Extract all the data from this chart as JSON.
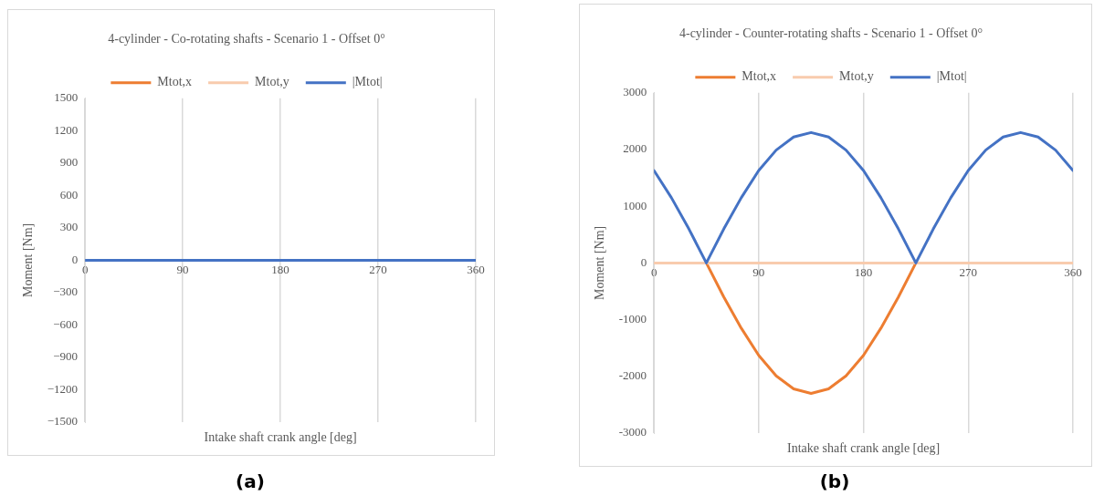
{
  "chart_data": [
    {
      "type": "line",
      "title": "4-cylinder - Co-rotating shafts - Scenario 1 - Offset 0°",
      "xlabel": "Intake shaft crank angle [deg]",
      "ylabel": "Moment [Nm]",
      "annotations": [
        "(a)"
      ],
      "x": [
        0,
        15,
        30,
        45,
        60,
        75,
        90,
        105,
        120,
        135,
        150,
        165,
        180,
        195,
        210,
        225,
        240,
        255,
        270,
        285,
        300,
        315,
        330,
        345,
        360
      ],
      "series": [
        {
          "name": "Mtot,x",
          "color": "#ed7d31",
          "values": [
            null,
            null,
            null,
            null,
            null,
            null,
            null,
            null,
            null,
            null,
            null,
            null,
            null,
            null,
            null,
            null,
            null,
            null,
            null,
            null,
            null,
            null,
            null,
            null,
            null
          ]
        },
        {
          "name": "Mtot,y",
          "color": "#f8cbad",
          "values": [
            null,
            null,
            null,
            null,
            null,
            null,
            null,
            null,
            null,
            null,
            null,
            null,
            null,
            null,
            null,
            null,
            null,
            null,
            null,
            null,
            null,
            null,
            null,
            null,
            null
          ]
        },
        {
          "name": "|Mtot|",
          "color": "#4472c4",
          "values": [
            0,
            0,
            0,
            0,
            0,
            0,
            0,
            0,
            0,
            0,
            0,
            0,
            0,
            0,
            0,
            0,
            0,
            0,
            0,
            0,
            0,
            0,
            0,
            0,
            0
          ]
        }
      ],
      "xlim": [
        0,
        360
      ],
      "xticks": [
        0,
        90,
        180,
        270,
        360
      ],
      "ylim": [
        -1500,
        1500
      ],
      "yticks": [
        {
          "value": -1500,
          "label": "−1500"
        },
        {
          "value": -1200,
          "label": "−1200"
        },
        {
          "value": -900,
          "label": "−900"
        },
        {
          "value": -600,
          "label": "−600"
        },
        {
          "value": -300,
          "label": "−300"
        },
        0,
        300,
        600,
        900,
        1200,
        1500
      ],
      "grid": "x",
      "legend": "top"
    },
    {
      "type": "line",
      "title": "4-cylinder - Counter-rotating shafts - Scenario 1 - Offset 0°",
      "xlabel": "Intake shaft crank angle [deg]",
      "ylabel": "Moment [Nm]",
      "annotations": [
        "(b)"
      ],
      "x": [
        0,
        15,
        30,
        45,
        60,
        75,
        90,
        105,
        120,
        135,
        150,
        165,
        180,
        195,
        210,
        225,
        240,
        255,
        270,
        285,
        300,
        315,
        330,
        345,
        360
      ],
      "series": [
        {
          "name": "Mtot,x",
          "color": "#ed7d31",
          "values": [
            null,
            null,
            null,
            0,
            -600,
            -1150,
            -1630,
            -1990,
            -2220,
            -2300,
            -2220,
            -1990,
            -1630,
            -1150,
            -600,
            0,
            null,
            null,
            null,
            null,
            null,
            null,
            null,
            null,
            null
          ]
        },
        {
          "name": "Mtot,y",
          "color": "#f8cbad",
          "values": [
            0,
            0,
            0,
            0,
            0,
            0,
            0,
            0,
            0,
            0,
            0,
            0,
            0,
            0,
            0,
            0,
            0,
            0,
            0,
            0,
            0,
            0,
            0,
            0,
            0
          ]
        },
        {
          "name": "|Mtot|",
          "color": "#4472c4",
          "values": [
            1630,
            1150,
            600,
            0,
            600,
            1150,
            1630,
            1990,
            2220,
            2300,
            2220,
            1990,
            1630,
            1150,
            600,
            0,
            600,
            1150,
            1630,
            1990,
            2220,
            2300,
            2220,
            1990,
            1630
          ]
        }
      ],
      "xlim": [
        0,
        360
      ],
      "xticks": [
        0,
        90,
        180,
        270,
        360
      ],
      "ylim": [
        -3000,
        3000
      ],
      "yticks": [
        -3000,
        -2000,
        -1000,
        0,
        1000,
        2000,
        3000
      ],
      "grid": "x",
      "legend": "top"
    }
  ]
}
